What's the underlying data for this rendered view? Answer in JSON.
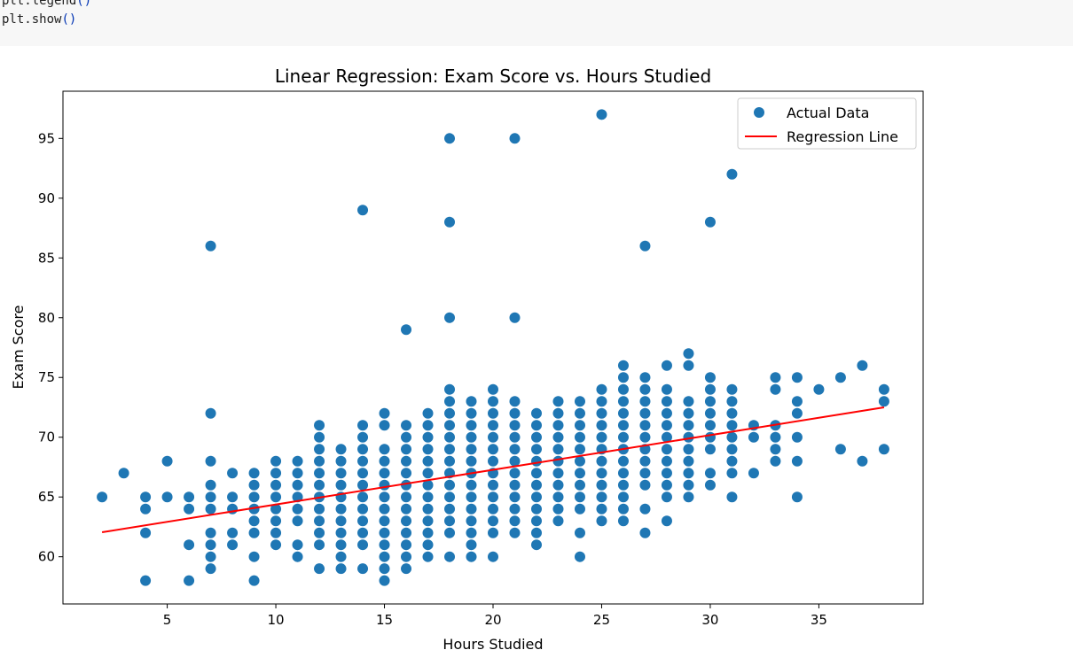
{
  "code": {
    "lines": [
      {
        "name": "plt.legend",
        "parens": "()"
      },
      {
        "name": "plt.show",
        "parens": "()"
      }
    ]
  },
  "colors": {
    "scatter": "#1f77b4",
    "regression": "#ff0000",
    "code_bg": "#f7f7f7",
    "code_paren": "#0033b3"
  },
  "chart_data": {
    "type": "scatter",
    "title": "Linear Regression: Exam Score vs. Hours Studied",
    "xlabel": "Hours Studied",
    "ylabel": "Exam Score",
    "xlim": [
      0.2,
      39.8
    ],
    "ylim": [
      56.05,
      98.95
    ],
    "xticks": [
      5,
      10,
      15,
      20,
      25,
      30,
      35
    ],
    "yticks": [
      60,
      65,
      70,
      75,
      80,
      85,
      90,
      95
    ],
    "grid": false,
    "legend_position": "upper-right",
    "legend": [
      {
        "label": "Actual Data",
        "kind": "marker"
      },
      {
        "label": "Regression Line",
        "kind": "line"
      }
    ],
    "regression_line": {
      "x": [
        2,
        38
      ],
      "y": [
        62.05,
        72.5
      ]
    },
    "scatter_columns": [
      {
        "x": 2,
        "y": [
          65
        ]
      },
      {
        "x": 3,
        "y": [
          67
        ]
      },
      {
        "x": 4,
        "y": [
          58,
          62,
          64,
          65
        ]
      },
      {
        "x": 5,
        "y": [
          65,
          68
        ]
      },
      {
        "x": 6,
        "y": [
          58,
          61,
          64,
          65
        ]
      },
      {
        "x": 7,
        "y": [
          59,
          60,
          61,
          62,
          64,
          65,
          66,
          68,
          72,
          86
        ]
      },
      {
        "x": 8,
        "y": [
          61,
          62,
          64,
          65,
          67
        ]
      },
      {
        "x": 9,
        "y": [
          58,
          60,
          62,
          63,
          64,
          65,
          66,
          67
        ]
      },
      {
        "x": 10,
        "y": [
          61,
          62,
          63,
          64,
          65,
          66,
          67,
          68
        ]
      },
      {
        "x": 11,
        "y": [
          60,
          61,
          63,
          64,
          65,
          66,
          67,
          68
        ]
      },
      {
        "x": 12,
        "y": [
          59,
          61,
          62,
          63,
          64,
          65,
          66,
          67,
          68,
          69,
          70,
          71
        ]
      },
      {
        "x": 13,
        "y": [
          59,
          60,
          61,
          62,
          63,
          64,
          65,
          66,
          67,
          68,
          69
        ]
      },
      {
        "x": 14,
        "y": [
          59,
          61,
          62,
          63,
          64,
          65,
          66,
          67,
          68,
          69,
          70,
          71,
          89
        ]
      },
      {
        "x": 15,
        "y": [
          58,
          59,
          60,
          61,
          62,
          63,
          64,
          65,
          66,
          67,
          68,
          69,
          71,
          72
        ]
      },
      {
        "x": 16,
        "y": [
          59,
          60,
          61,
          62,
          63,
          64,
          65,
          66,
          67,
          68,
          69,
          70,
          71,
          79
        ]
      },
      {
        "x": 17,
        "y": [
          60,
          61,
          62,
          63,
          64,
          65,
          66,
          67,
          68,
          69,
          70,
          71,
          72
        ]
      },
      {
        "x": 18,
        "y": [
          60,
          62,
          63,
          64,
          65,
          66,
          67,
          68,
          69,
          70,
          71,
          72,
          73,
          74,
          80,
          88,
          95
        ]
      },
      {
        "x": 19,
        "y": [
          60,
          61,
          62,
          63,
          64,
          65,
          66,
          67,
          68,
          69,
          70,
          71,
          72,
          73
        ]
      },
      {
        "x": 20,
        "y": [
          60,
          62,
          63,
          64,
          65,
          66,
          67,
          68,
          69,
          70,
          71,
          72,
          73,
          74
        ]
      },
      {
        "x": 21,
        "y": [
          62,
          63,
          64,
          65,
          66,
          67,
          68,
          69,
          70,
          71,
          72,
          73,
          80,
          95
        ]
      },
      {
        "x": 22,
        "y": [
          61,
          62,
          63,
          64,
          65,
          66,
          67,
          68,
          69,
          70,
          71,
          72
        ]
      },
      {
        "x": 23,
        "y": [
          63,
          64,
          65,
          66,
          67,
          68,
          69,
          70,
          71,
          72,
          73
        ]
      },
      {
        "x": 24,
        "y": [
          60,
          62,
          64,
          65,
          66,
          67,
          68,
          69,
          70,
          71,
          72,
          73
        ]
      },
      {
        "x": 25,
        "y": [
          63,
          64,
          65,
          66,
          67,
          68,
          69,
          70,
          71,
          72,
          73,
          74,
          97
        ]
      },
      {
        "x": 26,
        "y": [
          63,
          64,
          65,
          66,
          67,
          68,
          69,
          70,
          71,
          72,
          73,
          74,
          75,
          76
        ]
      },
      {
        "x": 27,
        "y": [
          62,
          64,
          66,
          67,
          68,
          69,
          70,
          71,
          72,
          73,
          74,
          75,
          86
        ]
      },
      {
        "x": 28,
        "y": [
          63,
          65,
          66,
          67,
          68,
          69,
          70,
          71,
          72,
          73,
          74,
          76
        ]
      },
      {
        "x": 29,
        "y": [
          65,
          66,
          67,
          68,
          69,
          70,
          71,
          72,
          73,
          76,
          77
        ]
      },
      {
        "x": 30,
        "y": [
          66,
          67,
          69,
          70,
          71,
          72,
          73,
          74,
          75,
          88
        ]
      },
      {
        "x": 31,
        "y": [
          65,
          67,
          68,
          69,
          70,
          71,
          72,
          73,
          74,
          92
        ]
      },
      {
        "x": 32,
        "y": [
          67,
          70,
          71
        ]
      },
      {
        "x": 33,
        "y": [
          68,
          69,
          70,
          71,
          74,
          75
        ]
      },
      {
        "x": 34,
        "y": [
          65,
          68,
          70,
          72,
          73,
          75
        ]
      },
      {
        "x": 35,
        "y": [
          74
        ]
      },
      {
        "x": 36,
        "y": [
          69,
          75
        ]
      },
      {
        "x": 37,
        "y": [
          68,
          76
        ]
      },
      {
        "x": 38,
        "y": [
          69,
          73,
          74
        ]
      }
    ]
  }
}
